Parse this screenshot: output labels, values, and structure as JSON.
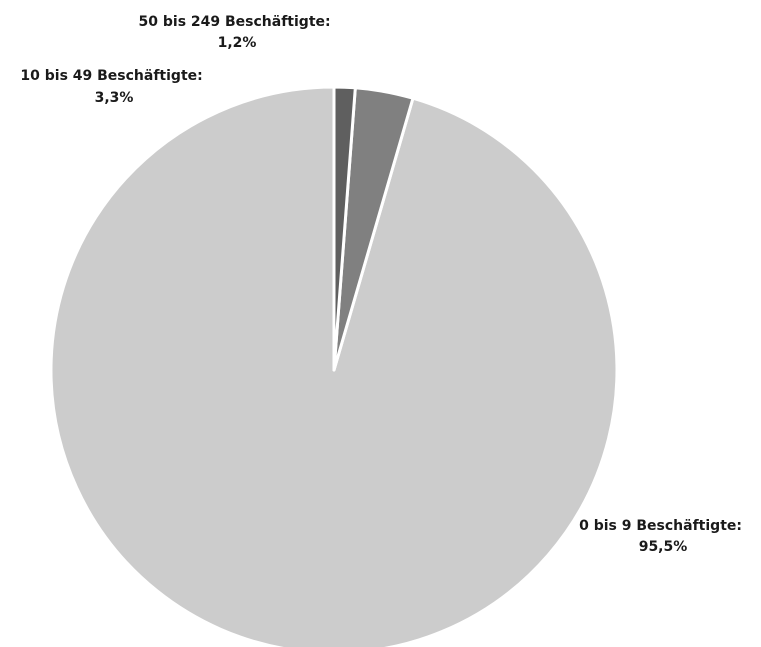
{
  "chart_data": {
    "type": "pie",
    "title": "",
    "start_angle_deg": 0,
    "direction": "counterclockwise",
    "slices": [
      {
        "label": "0 bis 9 Beschäftigte:",
        "value": 95.5,
        "value_label": "95,5%",
        "color": "#cccccc"
      },
      {
        "label": "10 bis 49 Beschäftigte:",
        "value": 3.3,
        "value_label": "3,3%",
        "color": "#808080"
      },
      {
        "label": "50 bis 249 Beschäftigte:",
        "value": 1.2,
        "value_label": "1,2%",
        "color": "#5f5f5f"
      }
    ],
    "slice_border_color": "#ffffff",
    "label_color": "#1a1a1a"
  }
}
